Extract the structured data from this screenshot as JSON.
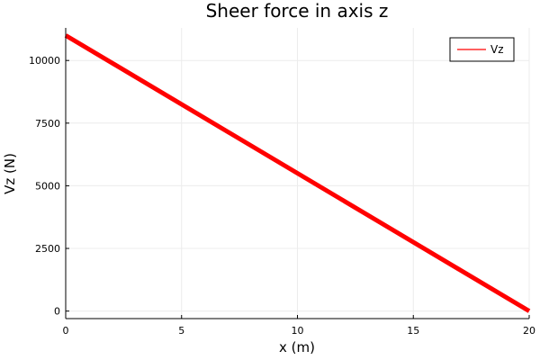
{
  "chart_data": {
    "type": "line",
    "title": "Sheer force in axis z",
    "xlabel": "x (m)",
    "ylabel": "Vz (N)",
    "xlim": [
      0,
      20
    ],
    "ylim": [
      -300,
      11300
    ],
    "xticks": [
      0,
      5,
      10,
      15,
      20
    ],
    "xtick_labels": [
      "0",
      "5",
      "10",
      "15",
      "20"
    ],
    "yticks": [
      0,
      2500,
      5000,
      7500,
      10000
    ],
    "ytick_labels": [
      "0",
      "2500",
      "5000",
      "7500",
      "10000"
    ],
    "grid": true,
    "legend_position": "top-right",
    "series": [
      {
        "name": "Vz",
        "color": "#ff0000",
        "x": [
          0,
          20
        ],
        "y": [
          11000,
          0
        ]
      }
    ]
  }
}
